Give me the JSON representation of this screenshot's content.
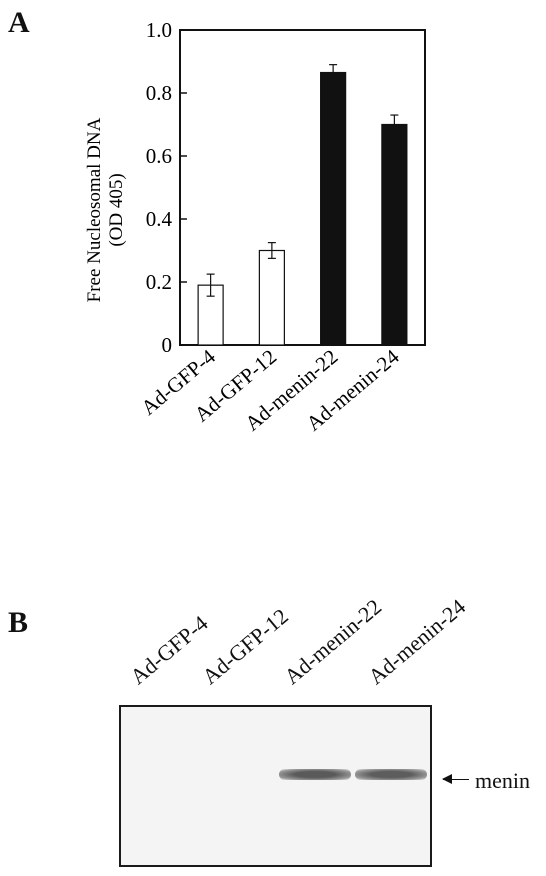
{
  "panels": {
    "a_letter": "A",
    "b_letter": "B"
  },
  "chart_data": {
    "type": "bar",
    "categories": [
      "Ad-GFP-4",
      "Ad-GFP-12",
      "Ad-menin-22",
      "Ad-menin-24"
    ],
    "values": [
      0.19,
      0.3,
      0.865,
      0.7
    ],
    "errors": [
      0.035,
      0.025,
      0.025,
      0.03
    ],
    "fills": [
      "#ffffff",
      "#ffffff",
      "#111111",
      "#111111"
    ],
    "ylabel_line1": "Free Nucleosomal DNA",
    "ylabel_line2": "(OD 405)",
    "ylim": [
      0,
      1.0
    ],
    "yticks": [
      "0",
      "0.2",
      "0.4",
      "0.6",
      "0.8",
      "1.0"
    ],
    "grid": false
  },
  "blot": {
    "lane_labels": [
      "Ad-GFP-4",
      "Ad-GFP-12",
      "Ad-menin-22",
      "Ad-menin-24"
    ],
    "band_label": "menin",
    "band_intensity": [
      0,
      0,
      1,
      0.95
    ]
  }
}
